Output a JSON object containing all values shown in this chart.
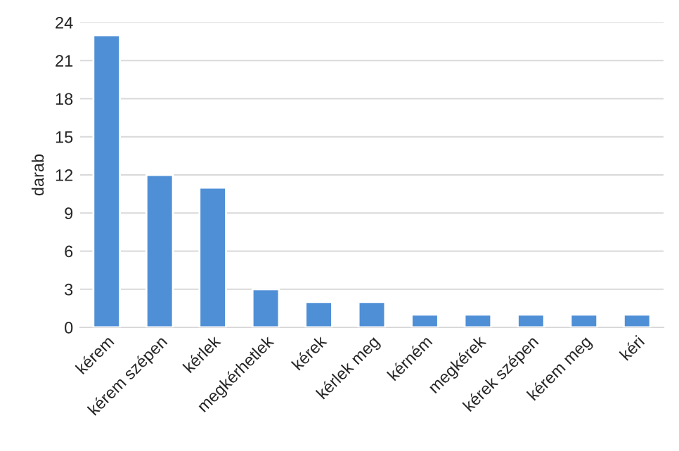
{
  "chart_data": {
    "type": "bar",
    "ylabel": "darab",
    "categories": [
      "kérem",
      "kérem szépen",
      "kérlek",
      "megkérhetlek",
      "kérek",
      "kérlek meg",
      "kérném",
      "megkérek",
      "kérek szépen",
      "kérem meg",
      "kéri"
    ],
    "values": [
      23,
      12,
      11,
      3,
      2,
      2,
      1,
      1,
      1,
      1,
      1
    ],
    "color": "#4f8fd6",
    "ylim": [
      0,
      24
    ],
    "yticks": [
      0,
      3,
      6,
      9,
      12,
      15,
      18,
      21,
      24
    ],
    "grid": "y"
  }
}
